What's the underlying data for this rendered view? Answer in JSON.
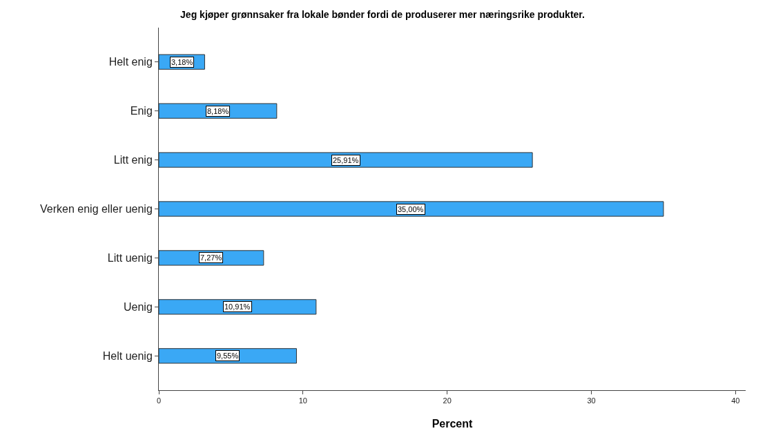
{
  "chart_data": {
    "type": "bar",
    "orientation": "horizontal",
    "title": "Jeg kjøper grønnsaker fra lokale bønder fordi de produserer mer næringsrike produkter.",
    "xlabel": "Percent",
    "categories": [
      "Helt enig",
      "Enig",
      "Litt enig",
      "Verken enig eller uenig",
      "Litt uenig",
      "Uenig",
      "Helt uenig"
    ],
    "values": [
      3.18,
      8.18,
      25.91,
      35.0,
      7.27,
      10.91,
      9.55
    ],
    "value_labels": [
      "3,18%",
      "8,18%",
      "25,91%",
      "35,00%",
      "7,27%",
      "10,91%",
      "9,55%"
    ],
    "color": "#3aa8f5",
    "xlim": [
      0,
      40.7
    ],
    "xticks": [
      0,
      10,
      20,
      30,
      40
    ],
    "grid": false
  }
}
